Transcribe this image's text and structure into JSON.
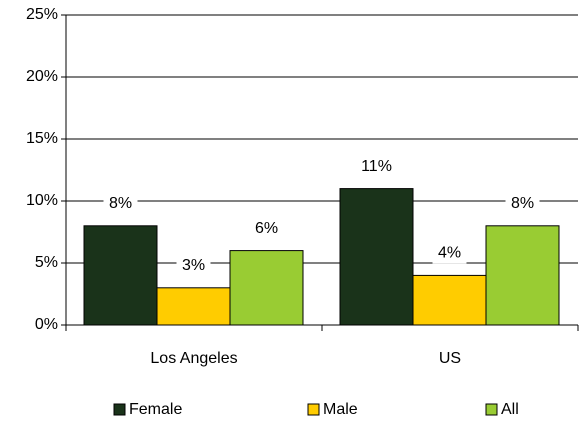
{
  "chart_data": {
    "type": "bar",
    "categories": [
      "Los Angeles",
      "US"
    ],
    "series": [
      {
        "name": "Female",
        "color": "#1a331a",
        "values": [
          8,
          11
        ],
        "value_labels": [
          "8%",
          "11%"
        ]
      },
      {
        "name": "Male",
        "color": "#ffcc00",
        "values": [
          3,
          4
        ],
        "value_labels": [
          "3%",
          "4%"
        ]
      },
      {
        "name": "All",
        "color": "#99cc33",
        "values": [
          6,
          8
        ],
        "value_labels": [
          "6%",
          "8%"
        ]
      }
    ],
    "ylim": [
      0,
      25
    ],
    "yticks": [
      {
        "value": 0,
        "label": "0%"
      },
      {
        "value": 5,
        "label": "5%"
      },
      {
        "value": 10,
        "label": "10%"
      },
      {
        "value": 15,
        "label": "15%"
      },
      {
        "value": 20,
        "label": "20%"
      },
      {
        "value": 25,
        "label": "25%"
      }
    ],
    "grid": true,
    "legend": "bottom"
  }
}
